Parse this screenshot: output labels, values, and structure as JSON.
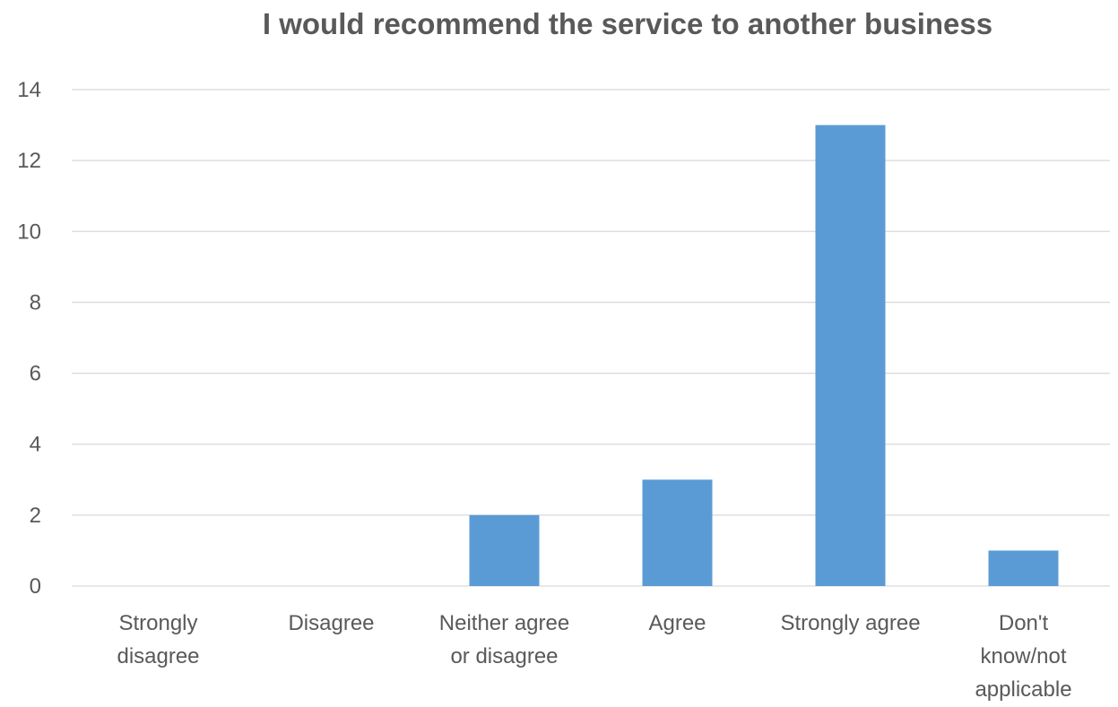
{
  "chart_data": {
    "type": "bar",
    "title": "I would recommend the service to another business",
    "categories": [
      [
        "Strongly",
        "disagree"
      ],
      [
        "Disagree"
      ],
      [
        "Neither agree",
        "or disagree"
      ],
      [
        "Agree"
      ],
      [
        "Strongly agree"
      ],
      [
        "Don't",
        "know/not",
        "applicable"
      ]
    ],
    "values": [
      0,
      0,
      2,
      3,
      13,
      1
    ],
    "ylim": [
      0,
      14
    ],
    "yticks": [
      "0",
      "2",
      "4",
      "6",
      "8",
      "10",
      "12",
      "14"
    ],
    "xlabel": "",
    "ylabel": "",
    "grid": true,
    "bar_color": "#5b9bd5"
  }
}
